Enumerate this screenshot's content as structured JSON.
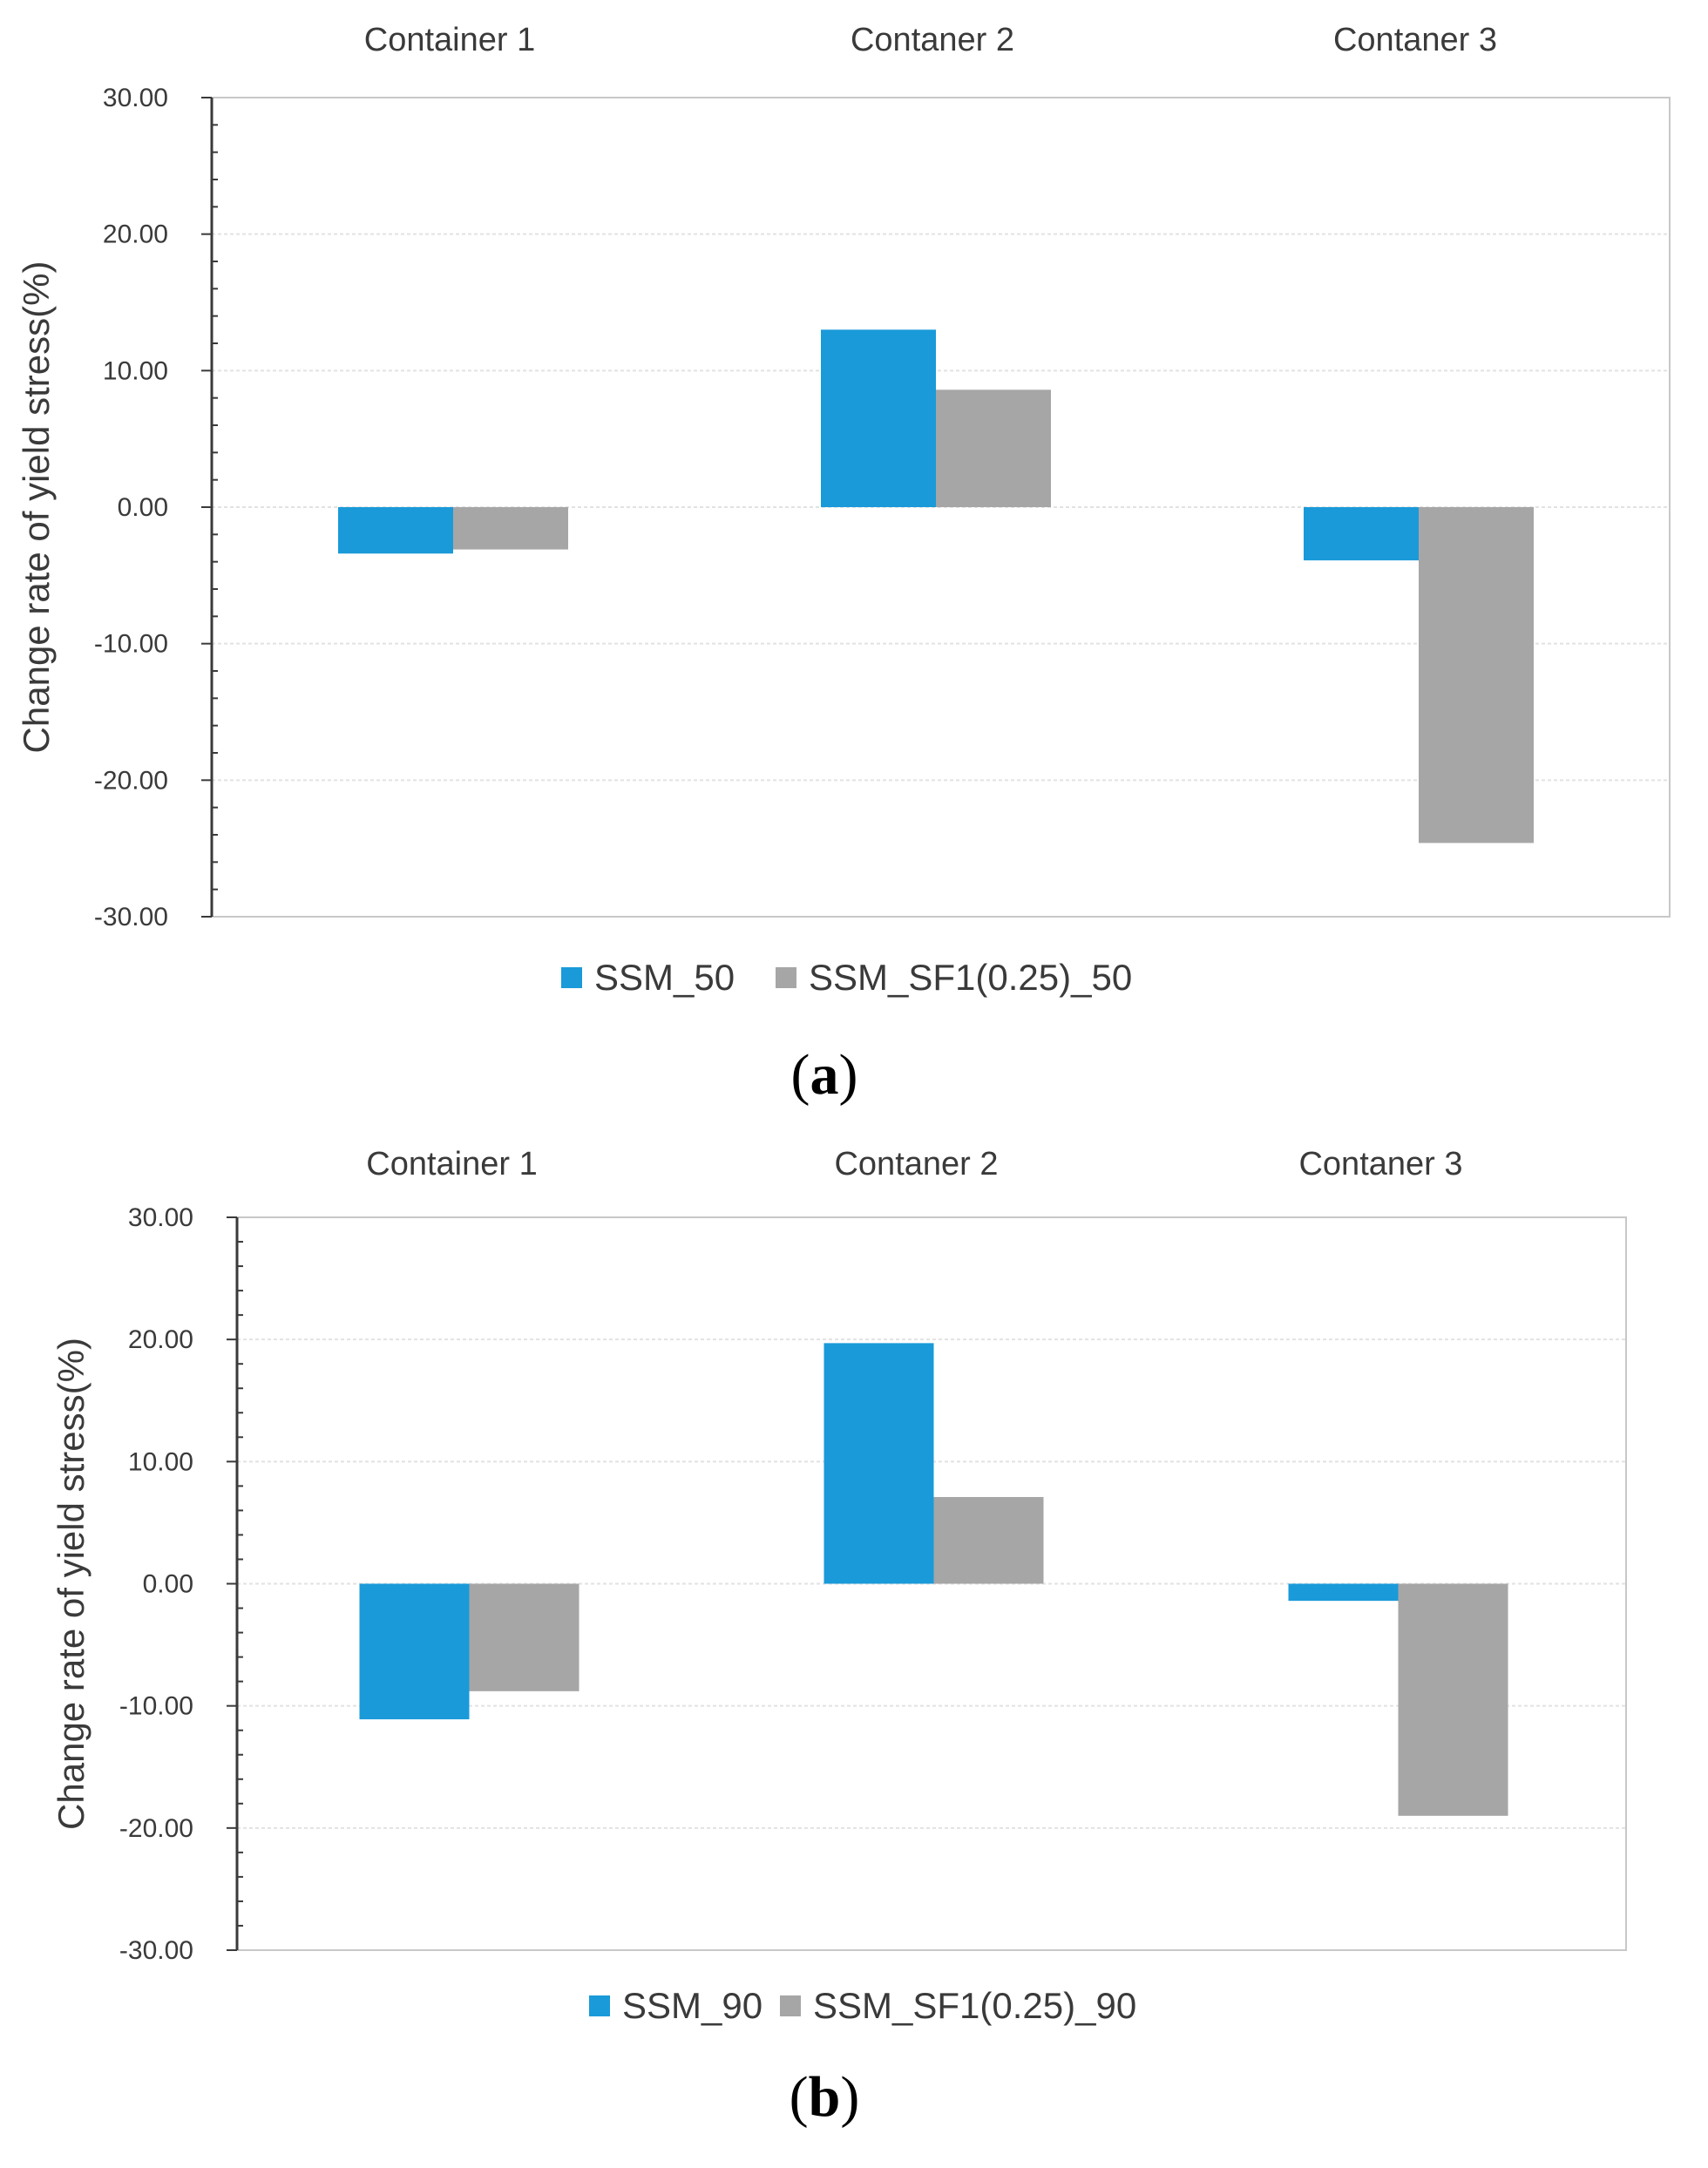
{
  "colors": {
    "series_blue": "#1a9ad9",
    "series_gray": "#a6a6a6",
    "frame": "#c8c8c8",
    "gridline": "#e2e2e2",
    "axis": "#3a3a3a"
  },
  "chart_data": [
    {
      "type": "bar",
      "panel_label": "a",
      "categories": [
        "Container 1",
        "Contaner 2",
        "Contaner 3"
      ],
      "ylabel": "Change rate of yield stress(%)",
      "ylim": [
        -30,
        30
      ],
      "yticks": [
        30,
        20,
        10,
        0,
        -10,
        -20,
        -30
      ],
      "ytick_labels": [
        "30.00",
        "20.00",
        "10.00",
        "0.00",
        "-10.00",
        "-20.00",
        "-30.00"
      ],
      "grid": true,
      "legend_position": "bottom",
      "series": [
        {
          "name": "SSM_50",
          "values": [
            -3.4,
            13.0,
            -3.9
          ]
        },
        {
          "name": "SSM_SF1(0.25)_50",
          "values": [
            -3.1,
            8.6,
            -24.6
          ]
        }
      ]
    },
    {
      "type": "bar",
      "panel_label": "b",
      "categories": [
        "Container 1",
        "Contaner 2",
        "Contaner 3"
      ],
      "ylabel": "Change rate of yield stress(%)",
      "ylim": [
        -30,
        30
      ],
      "yticks": [
        30,
        20,
        10,
        0,
        -10,
        -20,
        -30
      ],
      "ytick_labels": [
        "30.00",
        "20.00",
        "10.00",
        "0.00",
        "-10.00",
        "-20.00",
        "-30.00"
      ],
      "grid": true,
      "legend_position": "bottom",
      "series": [
        {
          "name": "SSM_90",
          "values": [
            -11.1,
            19.7,
            -1.4
          ]
        },
        {
          "name": "SSM_SF1(0.25)_90",
          "values": [
            -8.8,
            7.1,
            -19.0
          ]
        }
      ]
    }
  ]
}
